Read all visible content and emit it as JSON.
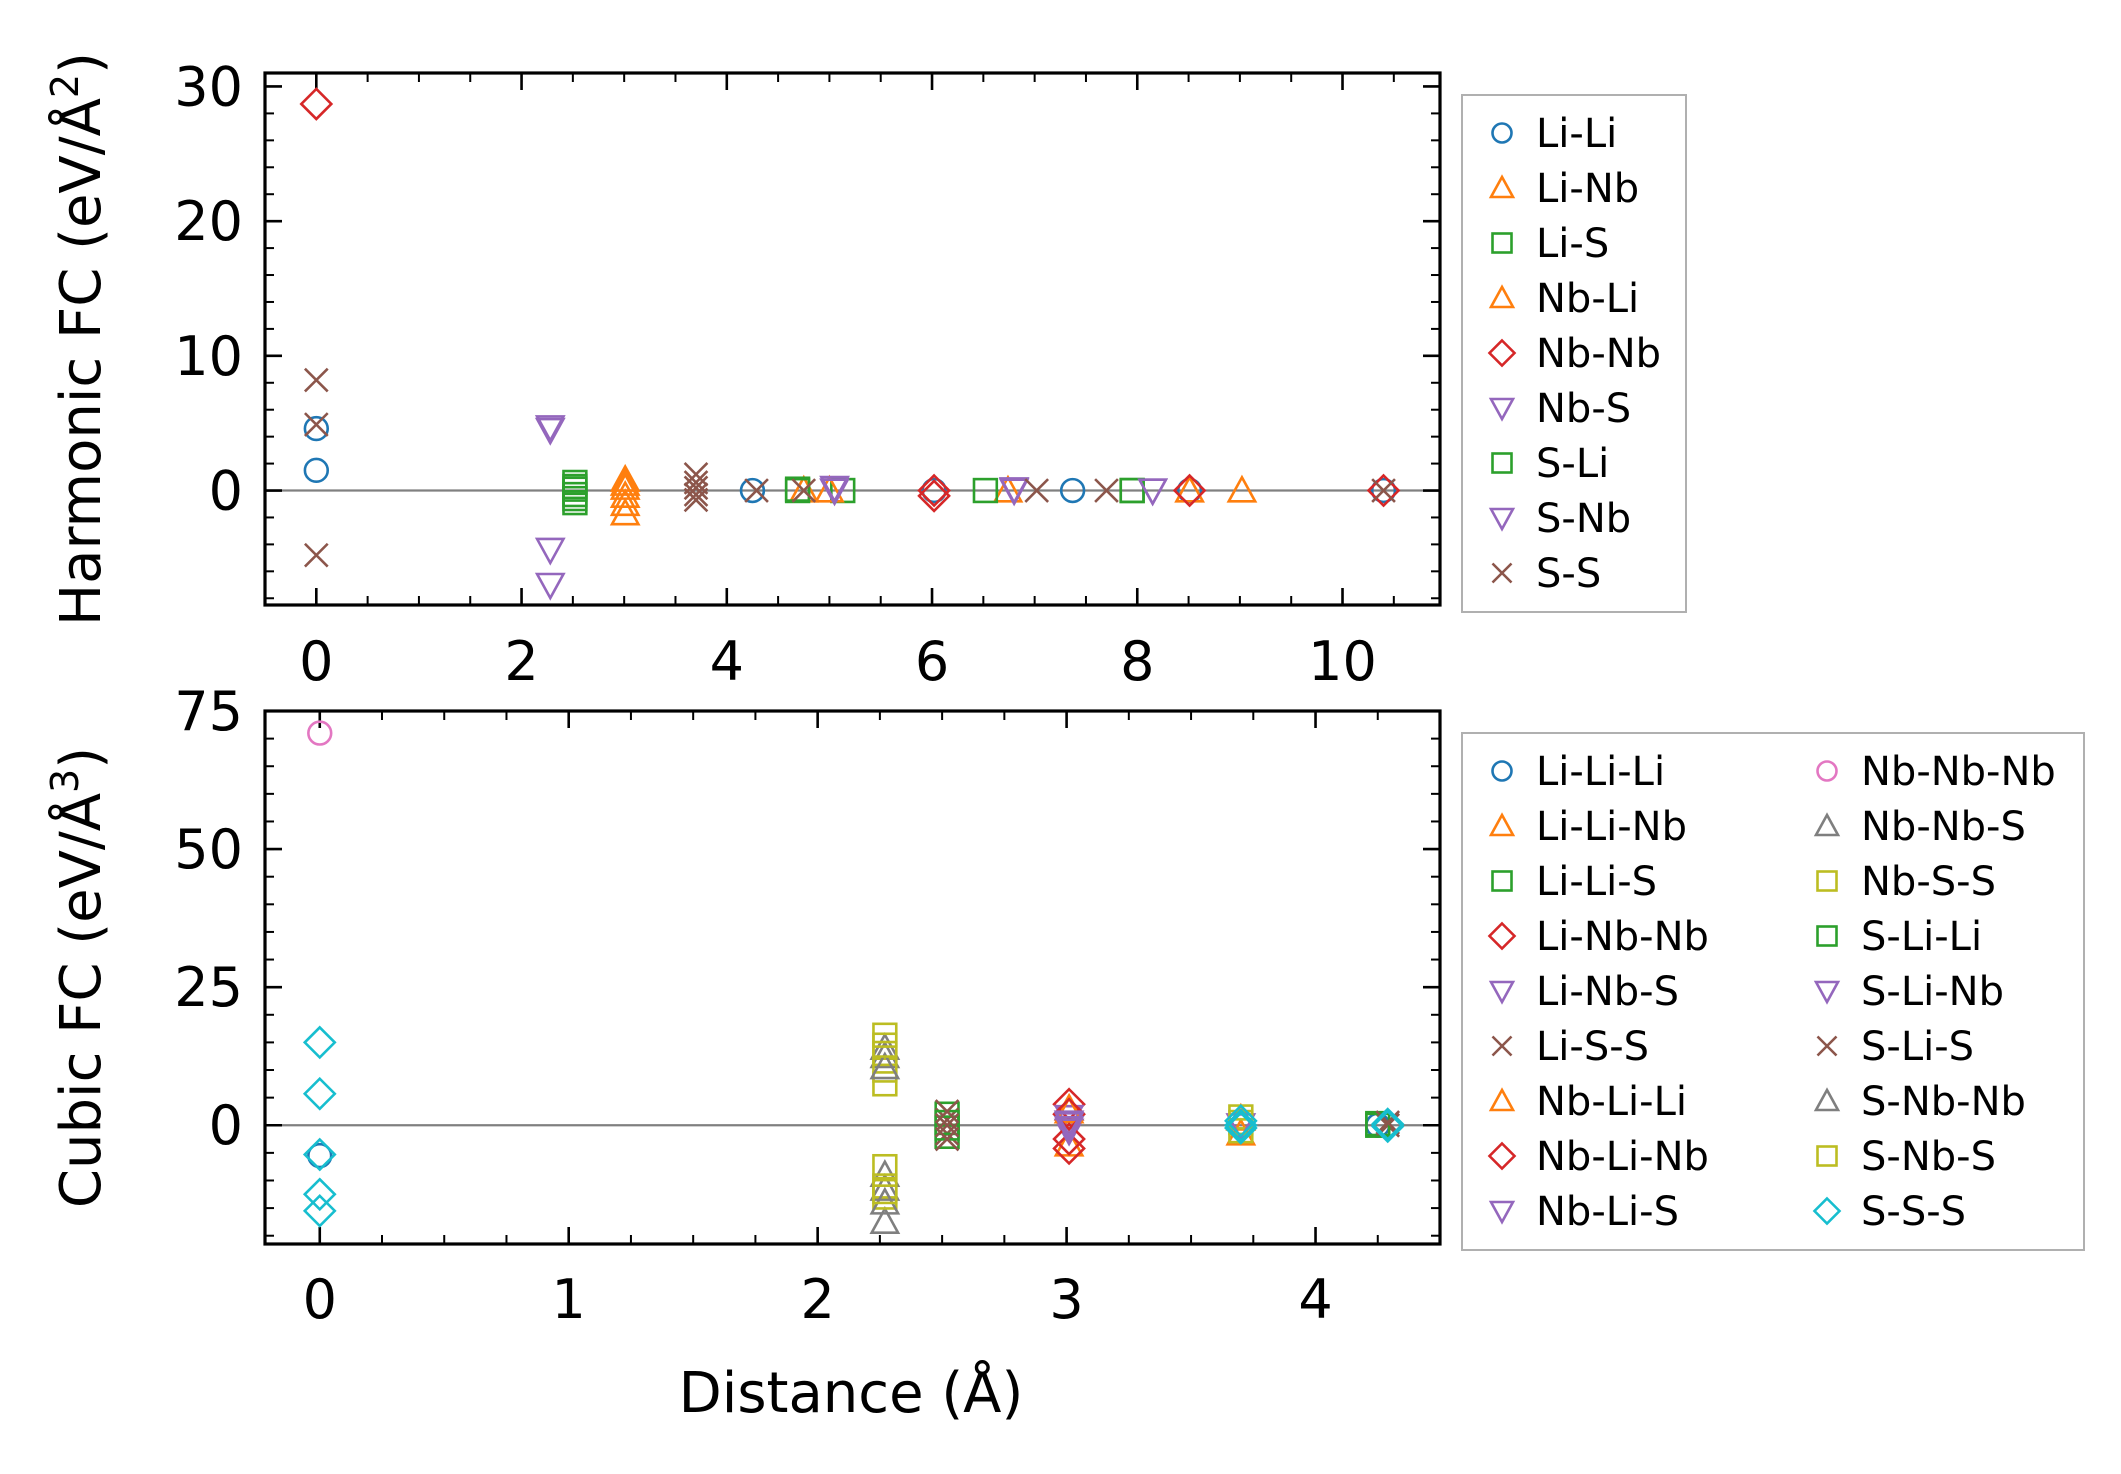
{
  "colors": {
    "Li-Li": "#1f77b4",
    "Li-Nb": "#ff7f0e",
    "Li-S": "#2ca02c",
    "Nb-Li": "#ff7f0e",
    "Nb-Nb": "#d62728",
    "Nb-S": "#9467bd",
    "S-Li": "#2ca02c",
    "S-Nb": "#9467bd",
    "S-S": "#8c564b",
    "pink": "#e377c2",
    "gray": "#7f7f7f",
    "olive": "#bcbd22",
    "cyan": "#17becf"
  },
  "chart_data": [
    {
      "type": "scatter",
      "title": "",
      "xlabel": "",
      "ylabel": "Harmonic FC (eV/Å²)",
      "ylabel_main": "Harmonic FC (eV/Å",
      "ylabel_sup": "2",
      "ylabel_end": ")",
      "xlim": [
        -0.5,
        10.95
      ],
      "ylim": [
        -8.5,
        31
      ],
      "xticks": [
        0,
        2,
        4,
        6,
        8,
        10
      ],
      "xtick_labels": [
        "0",
        "2",
        "4",
        "6",
        "8",
        "10"
      ],
      "yticks": [
        0,
        10,
        20,
        30
      ],
      "ytick_labels": [
        "0",
        "10",
        "20",
        "30"
      ],
      "zero_line": true,
      "legend_position": "outside-right",
      "legend_columns": 1,
      "series": [
        {
          "name": "Li-Li",
          "marker": "circle",
          "color": "#1f77b4",
          "points": [
            [
              0,
              4.6
            ],
            [
              0,
              1.5
            ],
            [
              4.25,
              0
            ],
            [
              6.02,
              0
            ],
            [
              7.37,
              0
            ],
            [
              8.51,
              0
            ],
            [
              10.4,
              0
            ]
          ]
        },
        {
          "name": "Li-Nb",
          "marker": "triangle-up",
          "color": "#ff7f0e",
          "points": [
            [
              3.01,
              0.8
            ],
            [
              3.01,
              0.2
            ],
            [
              3.01,
              -0.4
            ],
            [
              3.01,
              -1.7
            ],
            [
              4.75,
              0
            ],
            [
              6.74,
              0
            ],
            [
              9.02,
              0
            ]
          ]
        },
        {
          "name": "Li-S",
          "marker": "square",
          "color": "#2ca02c",
          "points": [
            [
              2.52,
              0.6
            ],
            [
              2.52,
              0.1
            ],
            [
              2.52,
              -0.3
            ],
            [
              2.52,
              -0.9
            ],
            [
              4.69,
              0
            ],
            [
              5.13,
              0
            ],
            [
              6.52,
              0
            ],
            [
              7.95,
              0
            ]
          ]
        },
        {
          "name": "Nb-Li",
          "marker": "triangle-up",
          "color": "#ff7f0e",
          "points": [
            [
              3.01,
              0.5
            ],
            [
              3.01,
              -1.0
            ],
            [
              5.0,
              0
            ],
            [
              8.51,
              0
            ]
          ]
        },
        {
          "name": "Nb-Nb",
          "marker": "diamond",
          "color": "#d62728",
          "points": [
            [
              0,
              28.7
            ],
            [
              6.02,
              0
            ],
            [
              6.02,
              -0.4
            ],
            [
              8.51,
              0
            ],
            [
              10.4,
              0
            ]
          ]
        },
        {
          "name": "Nb-S",
          "marker": "triangle-down",
          "color": "#9467bd",
          "points": [
            [
              2.28,
              4.5
            ],
            [
              2.28,
              -4.4
            ],
            [
              2.28,
              -7.0
            ],
            [
              5.05,
              0
            ],
            [
              6.8,
              0
            ],
            [
              8.15,
              0
            ]
          ]
        },
        {
          "name": "S-Li",
          "marker": "square",
          "color": "#2ca02c",
          "points": [
            [
              2.52,
              0.3
            ],
            [
              2.52,
              -0.6
            ],
            [
              4.69,
              0.1
            ],
            [
              7.95,
              0
            ]
          ]
        },
        {
          "name": "S-Nb",
          "marker": "triangle-down",
          "color": "#9467bd",
          "points": [
            [
              2.28,
              4.7
            ],
            [
              5.05,
              0.2
            ],
            [
              6.8,
              0.1
            ],
            [
              8.15,
              0
            ]
          ]
        },
        {
          "name": "S-S",
          "marker": "x",
          "color": "#8c564b",
          "points": [
            [
              0,
              8.2
            ],
            [
              0,
              4.9
            ],
            [
              0,
              -4.8
            ],
            [
              3.7,
              1.2
            ],
            [
              3.7,
              0.6
            ],
            [
              3.7,
              0.2
            ],
            [
              3.7,
              -0.3
            ],
            [
              3.7,
              -0.7
            ],
            [
              4.29,
              0
            ],
            [
              4.75,
              0
            ],
            [
              7.02,
              0
            ],
            [
              7.7,
              0
            ],
            [
              10.4,
              0
            ]
          ]
        }
      ]
    },
    {
      "type": "scatter",
      "title": "",
      "xlabel": "Distance (Å)",
      "ylabel": "Cubic FC (eV/Å³)",
      "ylabel_main": "Cubic FC (eV/Å",
      "ylabel_sup": "3",
      "ylabel_end": ")",
      "xlim": [
        -0.22,
        4.5
      ],
      "ylim": [
        -21.5,
        75
      ],
      "xticks": [
        0,
        1,
        2,
        3,
        4
      ],
      "xtick_labels": [
        "0",
        "1",
        "2",
        "3",
        "4"
      ],
      "yticks": [
        0,
        25,
        50,
        75
      ],
      "ytick_labels": [
        "0",
        "25",
        "50",
        "75"
      ],
      "zero_line": true,
      "legend_position": "outside-right",
      "legend_columns": 2,
      "series": [
        {
          "name": "Li-Li-Li",
          "marker": "circle",
          "color": "#1f77b4",
          "points": [
            [
              0,
              -5.5
            ],
            [
              4.25,
              0
            ]
          ]
        },
        {
          "name": "Li-Li-Nb",
          "marker": "triangle-up",
          "color": "#ff7f0e",
          "points": [
            [
              3.01,
              3.0
            ],
            [
              3.01,
              -3.5
            ],
            [
              3.7,
              1.2
            ]
          ]
        },
        {
          "name": "Li-Li-S",
          "marker": "square",
          "color": "#2ca02c",
          "points": [
            [
              2.52,
              2.0
            ],
            [
              2.52,
              -2.0
            ],
            [
              4.25,
              0.3
            ]
          ]
        },
        {
          "name": "Li-Nb-Nb",
          "marker": "diamond",
          "color": "#d62728",
          "points": [
            [
              3.01,
              3.8
            ],
            [
              3.01,
              -4.2
            ]
          ]
        },
        {
          "name": "Li-Nb-S",
          "marker": "triangle-down",
          "color": "#9467bd",
          "points": [
            [
              3.01,
              1.5
            ],
            [
              3.01,
              -1.0
            ]
          ]
        },
        {
          "name": "Li-S-S",
          "marker": "x",
          "color": "#8c564b",
          "points": [
            [
              2.52,
              1.0
            ],
            [
              2.52,
              -1.5
            ],
            [
              4.29,
              0
            ]
          ]
        },
        {
          "name": "Nb-Li-Li",
          "marker": "triangle-up",
          "color": "#ff7f0e",
          "points": [
            [
              3.01,
              2.5
            ],
            [
              3.7,
              -1.5
            ]
          ]
        },
        {
          "name": "Nb-Li-Nb",
          "marker": "diamond",
          "color": "#d62728",
          "points": [
            [
              3.01,
              2.0
            ],
            [
              3.01,
              -2.5
            ]
          ]
        },
        {
          "name": "Nb-Li-S",
          "marker": "triangle-down",
          "color": "#9467bd",
          "points": [
            [
              3.01,
              0.5
            ],
            [
              3.01,
              -0.5
            ]
          ]
        },
        {
          "name": "Nb-Nb-Nb",
          "marker": "circle",
          "color": "#e377c2",
          "points": [
            [
              0,
              71.0
            ]
          ]
        },
        {
          "name": "Nb-Nb-S",
          "marker": "triangle-up",
          "color": "#7f7f7f",
          "points": [
            [
              2.27,
              14.0
            ],
            [
              2.27,
              12.5
            ],
            [
              2.27,
              -9.0
            ],
            [
              2.27,
              -11.5
            ],
            [
              2.27,
              -17.5
            ]
          ]
        },
        {
          "name": "Nb-S-S",
          "marker": "square",
          "color": "#bcbd22",
          "points": [
            [
              2.27,
              16.3
            ],
            [
              2.27,
              13.0
            ],
            [
              2.27,
              10.0
            ],
            [
              2.27,
              7.5
            ],
            [
              2.27,
              -7.5
            ],
            [
              2.27,
              -11.0
            ],
            [
              2.27,
              -13.0
            ],
            [
              3.7,
              1.5
            ],
            [
              3.7,
              -1.0
            ]
          ]
        },
        {
          "name": "S-Li-Li",
          "marker": "square",
          "color": "#2ca02c",
          "points": [
            [
              2.52,
              0.5
            ],
            [
              2.52,
              -0.5
            ],
            [
              4.25,
              0
            ]
          ]
        },
        {
          "name": "S-Li-Nb",
          "marker": "triangle-down",
          "color": "#9467bd",
          "points": [
            [
              3.01,
              0.2
            ],
            [
              3.7,
              0
            ]
          ]
        },
        {
          "name": "S-Li-S",
          "marker": "x",
          "color": "#8c564b",
          "points": [
            [
              2.52,
              2.5
            ],
            [
              2.52,
              -2.5
            ],
            [
              2.52,
              0
            ],
            [
              4.29,
              0.5
            ]
          ]
        },
        {
          "name": "S-Nb-Nb",
          "marker": "triangle-up",
          "color": "#7f7f7f",
          "points": [
            [
              2.27,
              10.5
            ],
            [
              2.27,
              -14.0
            ]
          ]
        },
        {
          "name": "S-Nb-S",
          "marker": "square",
          "color": "#bcbd22",
          "points": [
            [
              2.27,
              14.5
            ],
            [
              2.27,
              -12.0
            ],
            [
              3.7,
              0.5
            ]
          ]
        },
        {
          "name": "S-S-S",
          "marker": "diamond",
          "color": "#17becf",
          "points": [
            [
              0,
              15.0
            ],
            [
              0,
              5.7
            ],
            [
              0,
              -5.3
            ],
            [
              0,
              -12.5
            ],
            [
              0,
              -15.5
            ],
            [
              3.7,
              0.8
            ],
            [
              3.7,
              -0.5
            ],
            [
              3.7,
              0
            ],
            [
              4.29,
              0.2
            ],
            [
              4.29,
              -0.2
            ]
          ]
        }
      ]
    }
  ]
}
